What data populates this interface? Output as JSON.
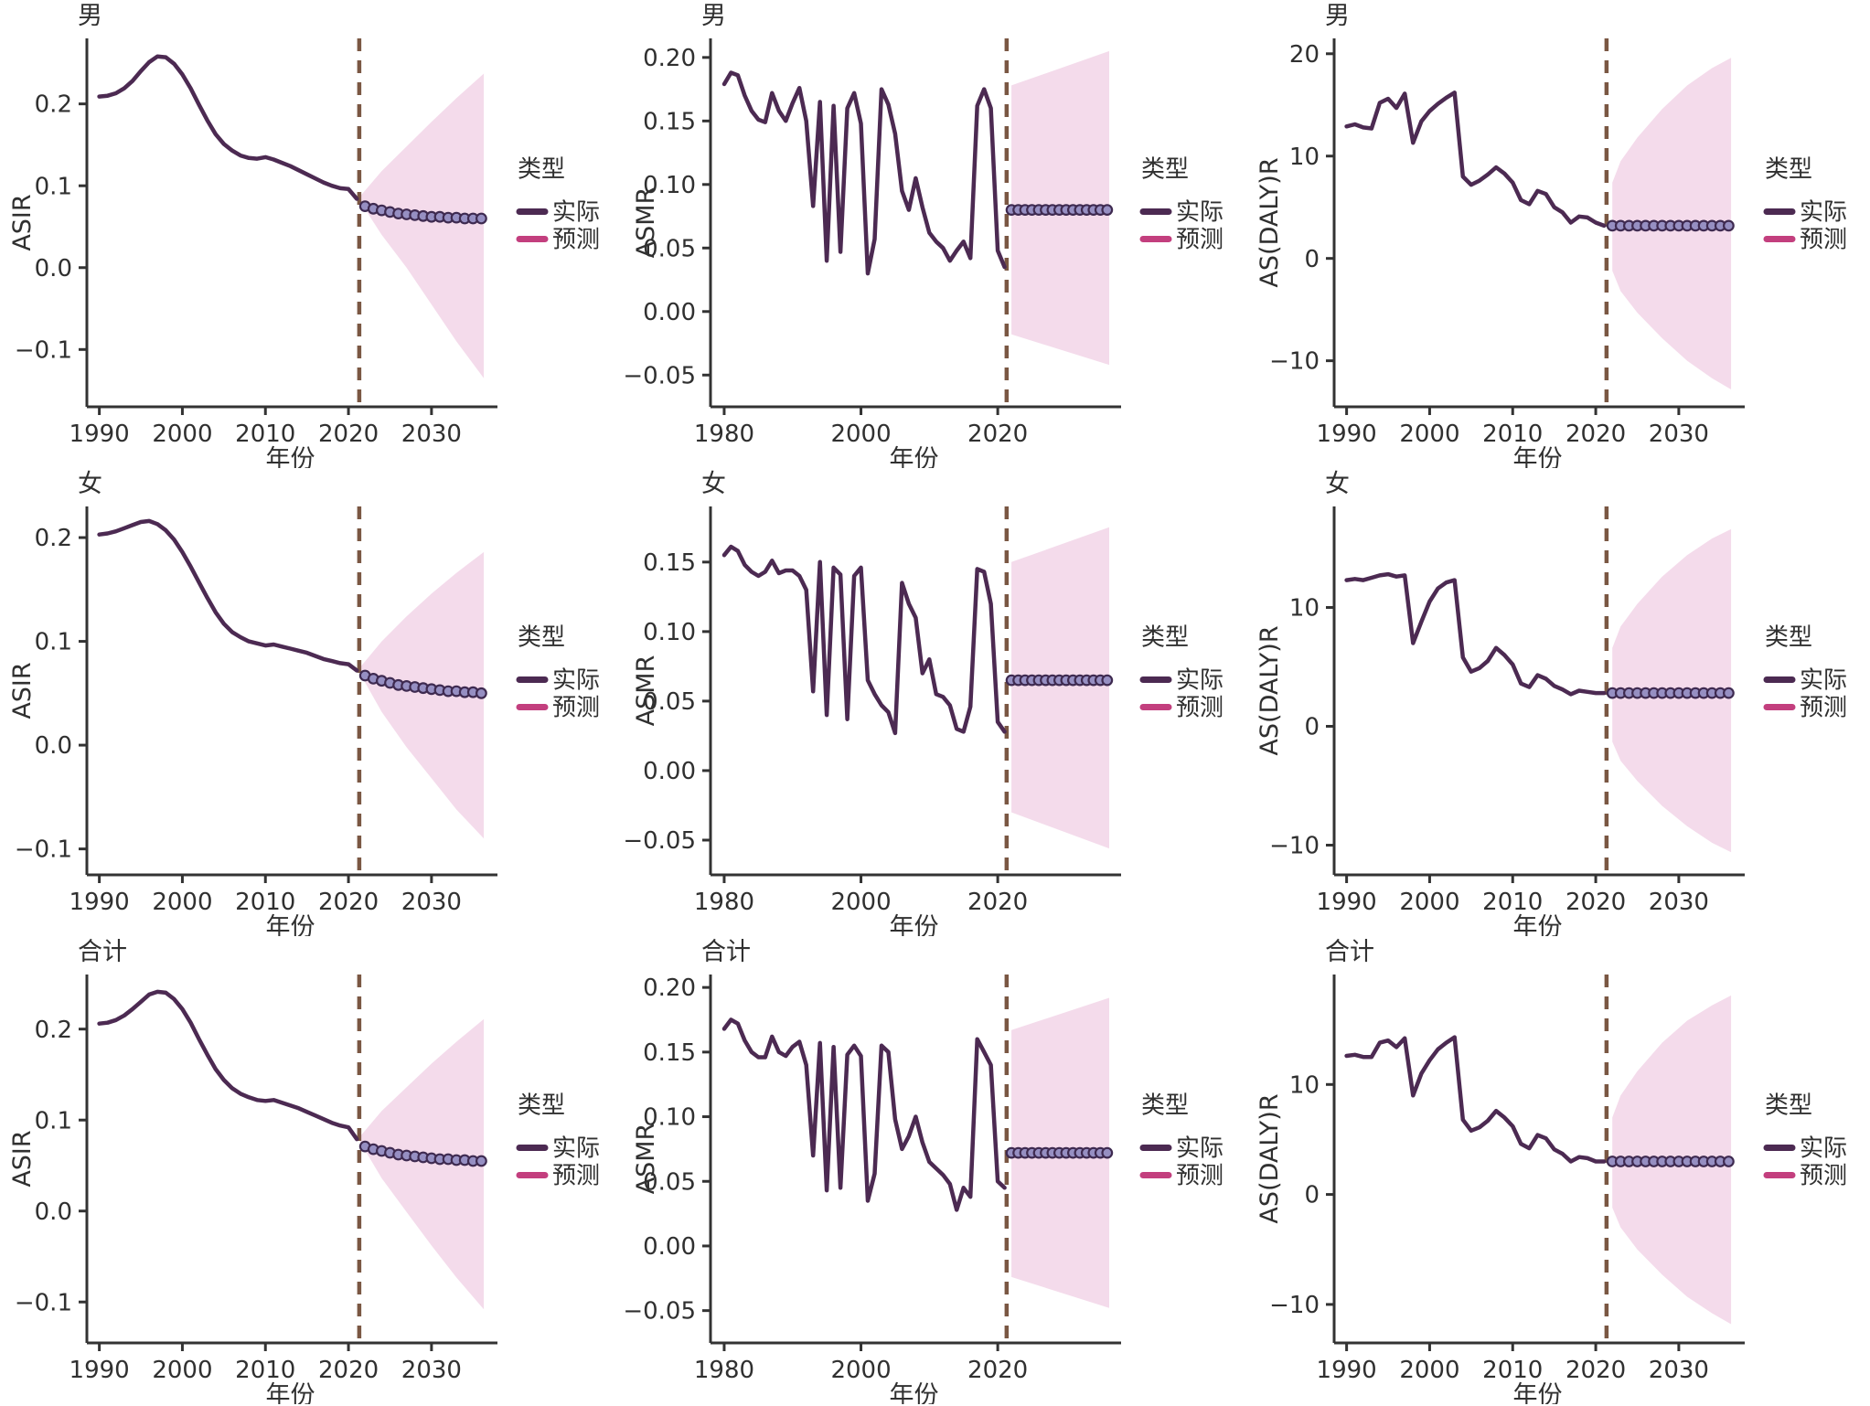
{
  "page": {
    "background": "#ffffff"
  },
  "colors": {
    "actual_line": "#4c2a52",
    "forecast_line": "#c33f7e",
    "dot_fill": "#968fc2",
    "dot_edge": "#3e2a50",
    "band_fill": "#f4dbeb",
    "cutoff_line": "#7a5743",
    "axis": "#333333",
    "text": "#2a2a2a"
  },
  "legend": {
    "title": "类型",
    "items": [
      {
        "label": "实际",
        "color": "#4c2a52"
      },
      {
        "label": "预测",
        "color": "#c33f7e"
      }
    ]
  },
  "chart_data": [
    {
      "type": "line",
      "title": "男",
      "ylabel": "ASIR",
      "xlabel": "年份",
      "x_domain": [
        1988.5,
        2037.5
      ],
      "x_ticks": [
        1990,
        2000,
        2010,
        2020,
        2030
      ],
      "x_tick_labels": [
        "1990",
        "2000",
        "2010",
        "2020",
        "2030"
      ],
      "y_domain": [
        -0.17,
        0.28
      ],
      "y_ticks": [
        {
          "v": 0.2,
          "label": "0.2"
        },
        {
          "v": 0.1,
          "label": "0.1"
        },
        {
          "v": 0.0,
          "label": "0.0"
        },
        {
          "v": -0.1,
          "label": "−0.1"
        }
      ],
      "cutoff_year": 2021.3,
      "actual": {
        "start_year": 1990,
        "values": [
          0.209,
          0.21,
          0.213,
          0.219,
          0.228,
          0.24,
          0.251,
          0.258,
          0.257,
          0.249,
          0.236,
          0.219,
          0.199,
          0.18,
          0.163,
          0.151,
          0.143,
          0.137,
          0.134,
          0.133,
          0.135,
          0.132,
          0.128,
          0.124,
          0.119,
          0.114,
          0.109,
          0.104,
          0.1,
          0.097,
          0.096,
          0.084
        ]
      },
      "forecast": {
        "start_year": 2022,
        "values": [
          0.075,
          0.072,
          0.07,
          0.068,
          0.066,
          0.065,
          0.064,
          0.063,
          0.062,
          0.062,
          0.061,
          0.061,
          0.06,
          0.06,
          0.06
        ]
      },
      "band": {
        "x": [
          2021.4,
          2024,
          2027,
          2030,
          2033,
          2036.3
        ],
        "hi": [
          0.087,
          0.118,
          0.148,
          0.178,
          0.207,
          0.237
        ],
        "lo": [
          0.081,
          0.04,
          0.0,
          -0.045,
          -0.09,
          -0.135
        ]
      }
    },
    {
      "type": "line",
      "title": "男",
      "ylabel": "ASMR",
      "xlabel": "年份",
      "x_domain": [
        1978,
        2037.5
      ],
      "x_ticks": [
        1980,
        2000,
        2020
      ],
      "x_tick_labels": [
        "1980",
        "2000",
        "2020"
      ],
      "y_domain": [
        -0.075,
        0.215
      ],
      "y_ticks": [
        {
          "v": 0.2,
          "label": "0.20"
        },
        {
          "v": 0.15,
          "label": "0.15"
        },
        {
          "v": 0.1,
          "label": "0.10"
        },
        {
          "v": 0.05,
          "label": "0.05"
        },
        {
          "v": 0.0,
          "label": "0.00"
        },
        {
          "v": -0.05,
          "label": "−0.05"
        }
      ],
      "cutoff_year": 2021.3,
      "actual": {
        "start_year": 1980,
        "values": [
          0.179,
          0.188,
          0.186,
          0.17,
          0.158,
          0.151,
          0.149,
          0.172,
          0.158,
          0.15,
          0.164,
          0.176,
          0.15,
          0.083,
          0.165,
          0.04,
          0.162,
          0.047,
          0.16,
          0.172,
          0.148,
          0.03,
          0.057,
          0.175,
          0.163,
          0.14,
          0.095,
          0.08,
          0.105,
          0.082,
          0.062,
          0.055,
          0.05,
          0.04,
          0.048,
          0.055,
          0.042,
          0.162,
          0.175,
          0.16,
          0.048,
          0.035
        ]
      },
      "forecast": {
        "start_year": 2022,
        "values": [
          0.08,
          0.08,
          0.08,
          0.08,
          0.08,
          0.08,
          0.08,
          0.08,
          0.08,
          0.08,
          0.08,
          0.08,
          0.08,
          0.08,
          0.08
        ]
      },
      "band": {
        "x": [
          2022,
          2036.3
        ],
        "hi": [
          0.178,
          0.205
        ],
        "lo": [
          -0.018,
          -0.042
        ]
      }
    },
    {
      "type": "line",
      "title": "男",
      "ylabel": "AS(DALY)R",
      "xlabel": "年份",
      "x_domain": [
        1988.5,
        2037.5
      ],
      "x_ticks": [
        1990,
        2000,
        2010,
        2020,
        2030
      ],
      "x_tick_labels": [
        "1990",
        "2000",
        "2010",
        "2020",
        "2030"
      ],
      "y_domain": [
        -14.5,
        21.5
      ],
      "y_ticks": [
        {
          "v": 20,
          "label": "20"
        },
        {
          "v": 10,
          "label": "10"
        },
        {
          "v": 0,
          "label": "0"
        },
        {
          "v": -10,
          "label": "−10"
        }
      ],
      "cutoff_year": 2021.3,
      "actual": {
        "start_year": 1990,
        "values": [
          12.9,
          13.1,
          12.8,
          12.7,
          15.2,
          15.6,
          14.7,
          16.1,
          11.3,
          13.4,
          14.4,
          15.1,
          15.7,
          16.2,
          8.0,
          7.2,
          7.6,
          8.2,
          8.9,
          8.3,
          7.4,
          5.7,
          5.3,
          6.6,
          6.3,
          5.0,
          4.5,
          3.5,
          4.1,
          4.0,
          3.5,
          3.2
        ]
      },
      "forecast": {
        "start_year": 2022,
        "values": [
          3.2,
          3.2,
          3.2,
          3.2,
          3.2,
          3.2,
          3.2,
          3.2,
          3.2,
          3.2,
          3.2,
          3.2,
          3.2,
          3.2,
          3.2
        ]
      },
      "band": {
        "x": [
          2022,
          2023,
          2025,
          2028,
          2031,
          2034,
          2036.3
        ],
        "hi": [
          7.4,
          9.5,
          11.8,
          14.6,
          16.9,
          18.6,
          19.6
        ],
        "lo": [
          -1.2,
          -3.2,
          -5.3,
          -7.8,
          -10.0,
          -11.7,
          -12.8
        ]
      }
    },
    {
      "type": "line",
      "title": "女",
      "ylabel": "ASIR",
      "xlabel": "年份",
      "x_domain": [
        1988.5,
        2037.5
      ],
      "x_ticks": [
        1990,
        2000,
        2010,
        2020,
        2030
      ],
      "x_tick_labels": [
        "1990",
        "2000",
        "2010",
        "2020",
        "2030"
      ],
      "y_domain": [
        -0.125,
        0.23
      ],
      "y_ticks": [
        {
          "v": 0.2,
          "label": "0.2"
        },
        {
          "v": 0.1,
          "label": "0.1"
        },
        {
          "v": 0.0,
          "label": "0.0"
        },
        {
          "v": -0.1,
          "label": "−0.1"
        }
      ],
      "cutoff_year": 2021.3,
      "actual": {
        "start_year": 1990,
        "values": [
          0.203,
          0.204,
          0.206,
          0.209,
          0.212,
          0.215,
          0.216,
          0.213,
          0.207,
          0.198,
          0.186,
          0.172,
          0.157,
          0.142,
          0.128,
          0.117,
          0.109,
          0.104,
          0.1,
          0.098,
          0.096,
          0.097,
          0.095,
          0.093,
          0.091,
          0.089,
          0.086,
          0.083,
          0.081,
          0.079,
          0.078,
          0.072
        ]
      },
      "forecast": {
        "start_year": 2022,
        "values": [
          0.067,
          0.064,
          0.062,
          0.06,
          0.058,
          0.057,
          0.056,
          0.055,
          0.054,
          0.053,
          0.052,
          0.052,
          0.051,
          0.051,
          0.05
        ]
      },
      "band": {
        "x": [
          2021.4,
          2024,
          2027,
          2030,
          2033,
          2036.3
        ],
        "hi": [
          0.075,
          0.1,
          0.124,
          0.146,
          0.166,
          0.186
        ],
        "lo": [
          0.069,
          0.032,
          -0.002,
          -0.032,
          -0.062,
          -0.09
        ]
      }
    },
    {
      "type": "line",
      "title": "女",
      "ylabel": "ASMR",
      "xlabel": "年份",
      "x_domain": [
        1978,
        2037.5
      ],
      "x_ticks": [
        1980,
        2000,
        2020
      ],
      "x_tick_labels": [
        "1980",
        "2000",
        "2020"
      ],
      "y_domain": [
        -0.075,
        0.19
      ],
      "y_ticks": [
        {
          "v": 0.15,
          "label": "0.15"
        },
        {
          "v": 0.1,
          "label": "0.10"
        },
        {
          "v": 0.05,
          "label": "0.05"
        },
        {
          "v": 0.0,
          "label": "0.00"
        },
        {
          "v": -0.05,
          "label": "−0.05"
        }
      ],
      "cutoff_year": 2021.3,
      "actual": {
        "start_year": 1980,
        "values": [
          0.155,
          0.161,
          0.158,
          0.148,
          0.143,
          0.14,
          0.143,
          0.151,
          0.142,
          0.144,
          0.144,
          0.14,
          0.13,
          0.057,
          0.15,
          0.04,
          0.146,
          0.141,
          0.037,
          0.14,
          0.146,
          0.065,
          0.055,
          0.047,
          0.042,
          0.027,
          0.135,
          0.12,
          0.11,
          0.07,
          0.08,
          0.055,
          0.053,
          0.047,
          0.03,
          0.028,
          0.046,
          0.145,
          0.143,
          0.12,
          0.035,
          0.028
        ]
      },
      "forecast": {
        "start_year": 2022,
        "values": [
          0.065,
          0.065,
          0.065,
          0.065,
          0.065,
          0.065,
          0.065,
          0.065,
          0.065,
          0.065,
          0.065,
          0.065,
          0.065,
          0.065,
          0.065
        ]
      },
      "band": {
        "x": [
          2022,
          2036.3
        ],
        "hi": [
          0.15,
          0.175
        ],
        "lo": [
          -0.03,
          -0.056
        ]
      }
    },
    {
      "type": "line",
      "title": "女",
      "ylabel": "AS(DALY)R",
      "xlabel": "年份",
      "x_domain": [
        1988.5,
        2037.5
      ],
      "x_ticks": [
        1990,
        2000,
        2010,
        2020,
        2030
      ],
      "x_tick_labels": [
        "1990",
        "2000",
        "2010",
        "2020",
        "2030"
      ],
      "y_domain": [
        -12.5,
        18.5
      ],
      "y_ticks": [
        {
          "v": 10,
          "label": "10"
        },
        {
          "v": 0,
          "label": "0"
        },
        {
          "v": -10,
          "label": "−10"
        }
      ],
      "cutoff_year": 2021.3,
      "actual": {
        "start_year": 1990,
        "values": [
          12.3,
          12.4,
          12.3,
          12.5,
          12.7,
          12.8,
          12.6,
          12.7,
          7.0,
          8.8,
          10.5,
          11.6,
          12.1,
          12.3,
          5.8,
          4.6,
          4.9,
          5.5,
          6.6,
          6.0,
          5.2,
          3.6,
          3.3,
          4.3,
          4.0,
          3.4,
          3.1,
          2.7,
          3.0,
          2.9,
          2.8,
          2.8
        ]
      },
      "forecast": {
        "start_year": 2022,
        "values": [
          2.8,
          2.8,
          2.8,
          2.8,
          2.8,
          2.8,
          2.8,
          2.8,
          2.8,
          2.8,
          2.8,
          2.8,
          2.8,
          2.8,
          2.8
        ]
      },
      "band": {
        "x": [
          2022,
          2023,
          2025,
          2028,
          2031,
          2034,
          2036.3
        ],
        "hi": [
          6.6,
          8.4,
          10.3,
          12.6,
          14.4,
          15.8,
          16.6
        ],
        "lo": [
          -1.3,
          -2.9,
          -4.6,
          -6.7,
          -8.4,
          -9.8,
          -10.6
        ]
      }
    },
    {
      "type": "line",
      "title": "合计",
      "ylabel": "ASIR",
      "xlabel": "年份",
      "x_domain": [
        1988.5,
        2037.5
      ],
      "x_ticks": [
        1990,
        2000,
        2010,
        2020,
        2030
      ],
      "x_tick_labels": [
        "1990",
        "2000",
        "2010",
        "2020",
        "2030"
      ],
      "y_domain": [
        -0.145,
        0.26
      ],
      "y_ticks": [
        {
          "v": 0.2,
          "label": "0.2"
        },
        {
          "v": 0.1,
          "label": "0.1"
        },
        {
          "v": 0.0,
          "label": "0.0"
        },
        {
          "v": -0.1,
          "label": "−0.1"
        }
      ],
      "cutoff_year": 2021.3,
      "actual": {
        "start_year": 1990,
        "values": [
          0.206,
          0.207,
          0.21,
          0.215,
          0.222,
          0.23,
          0.238,
          0.241,
          0.24,
          0.233,
          0.222,
          0.207,
          0.189,
          0.172,
          0.156,
          0.144,
          0.135,
          0.129,
          0.125,
          0.122,
          0.121,
          0.122,
          0.119,
          0.116,
          0.113,
          0.109,
          0.105,
          0.101,
          0.097,
          0.094,
          0.092,
          0.079
        ]
      },
      "forecast": {
        "start_year": 2022,
        "values": [
          0.071,
          0.068,
          0.066,
          0.064,
          0.062,
          0.061,
          0.06,
          0.059,
          0.058,
          0.057,
          0.057,
          0.056,
          0.056,
          0.055,
          0.055
        ]
      },
      "band": {
        "x": [
          2021.4,
          2024,
          2027,
          2030,
          2033,
          2036.3
        ],
        "hi": [
          0.082,
          0.11,
          0.136,
          0.162,
          0.186,
          0.211
        ],
        "lo": [
          0.076,
          0.036,
          -0.001,
          -0.038,
          -0.073,
          -0.108
        ]
      }
    },
    {
      "type": "line",
      "title": "合计",
      "ylabel": "ASMR",
      "xlabel": "年份",
      "x_domain": [
        1978,
        2037.5
      ],
      "x_ticks": [
        1980,
        2000,
        2020
      ],
      "x_tick_labels": [
        "1980",
        "2000",
        "2020"
      ],
      "y_domain": [
        -0.075,
        0.21
      ],
      "y_ticks": [
        {
          "v": 0.2,
          "label": "0.20"
        },
        {
          "v": 0.15,
          "label": "0.15"
        },
        {
          "v": 0.1,
          "label": "0.10"
        },
        {
          "v": 0.05,
          "label": "0.05"
        },
        {
          "v": 0.0,
          "label": "0.00"
        },
        {
          "v": -0.05,
          "label": "−0.05"
        }
      ],
      "cutoff_year": 2021.3,
      "actual": {
        "start_year": 1980,
        "values": [
          0.168,
          0.175,
          0.172,
          0.159,
          0.15,
          0.146,
          0.146,
          0.162,
          0.15,
          0.147,
          0.154,
          0.158,
          0.14,
          0.07,
          0.157,
          0.043,
          0.154,
          0.045,
          0.148,
          0.155,
          0.147,
          0.035,
          0.056,
          0.155,
          0.15,
          0.098,
          0.075,
          0.085,
          0.1,
          0.08,
          0.065,
          0.06,
          0.055,
          0.048,
          0.028,
          0.045,
          0.038,
          0.16,
          0.15,
          0.14,
          0.05,
          0.045
        ]
      },
      "forecast": {
        "start_year": 2022,
        "values": [
          0.072,
          0.072,
          0.072,
          0.072,
          0.072,
          0.072,
          0.072,
          0.072,
          0.072,
          0.072,
          0.072,
          0.072,
          0.072,
          0.072,
          0.072
        ]
      },
      "band": {
        "x": [
          2022,
          2036.3
        ],
        "hi": [
          0.167,
          0.192
        ],
        "lo": [
          -0.024,
          -0.048
        ]
      }
    },
    {
      "type": "line",
      "title": "合计",
      "ylabel": "AS(DALY)R",
      "xlabel": "年份",
      "x_domain": [
        1988.5,
        2037.5
      ],
      "x_ticks": [
        1990,
        2000,
        2010,
        2020,
        2030
      ],
      "x_tick_labels": [
        "1990",
        "2000",
        "2010",
        "2020",
        "2030"
      ],
      "y_domain": [
        -13.5,
        20
      ],
      "y_ticks": [
        {
          "v": 10,
          "label": "10"
        },
        {
          "v": 0,
          "label": "0"
        },
        {
          "v": -10,
          "label": "−10"
        }
      ],
      "cutoff_year": 2021.3,
      "actual": {
        "start_year": 1990,
        "values": [
          12.6,
          12.7,
          12.5,
          12.5,
          13.8,
          14.0,
          13.4,
          14.2,
          9.0,
          11.0,
          12.2,
          13.2,
          13.8,
          14.3,
          6.8,
          5.8,
          6.1,
          6.7,
          7.6,
          7.0,
          6.2,
          4.6,
          4.2,
          5.4,
          5.1,
          4.1,
          3.7,
          3.0,
          3.4,
          3.3,
          3.0,
          3.0
        ]
      },
      "forecast": {
        "start_year": 2022,
        "values": [
          3.0,
          3.0,
          3.0,
          3.0,
          3.0,
          3.0,
          3.0,
          3.0,
          3.0,
          3.0,
          3.0,
          3.0,
          3.0,
          3.0,
          3.0
        ]
      },
      "band": {
        "x": [
          2022,
          2023,
          2025,
          2028,
          2031,
          2034,
          2036.3
        ],
        "hi": [
          7.0,
          9.0,
          11.2,
          13.8,
          15.8,
          17.2,
          18.1
        ],
        "lo": [
          -1.2,
          -3.0,
          -5.0,
          -7.3,
          -9.3,
          -10.8,
          -11.8
        ]
      }
    }
  ]
}
